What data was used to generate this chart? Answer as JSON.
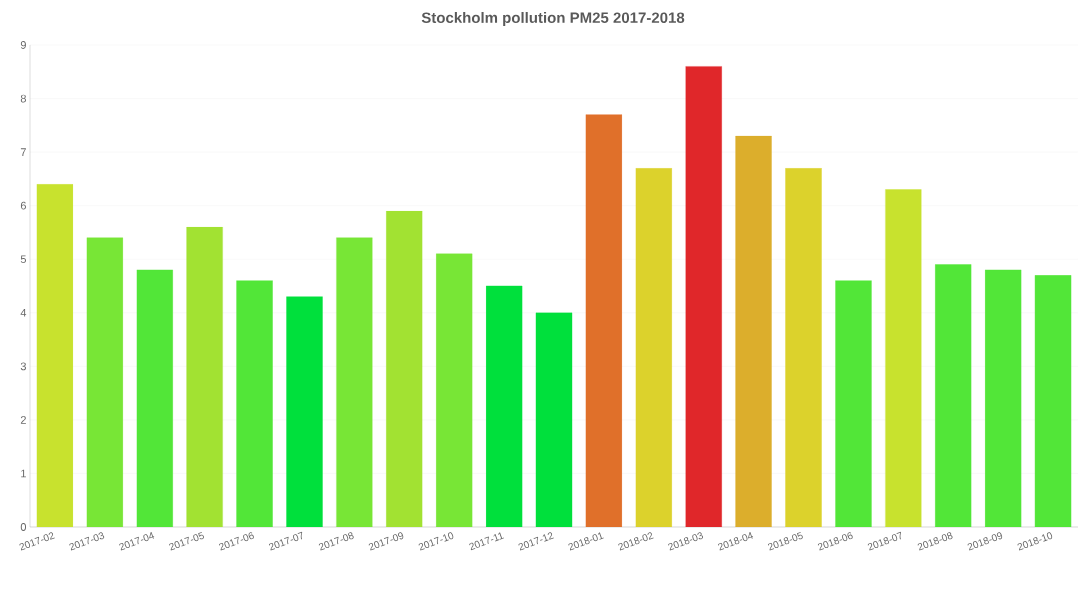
{
  "chart_data": {
    "type": "bar",
    "title": "Stockholm pollution PM25 2017-2018",
    "categories": [
      "2017-02",
      "2017-03",
      "2017-04",
      "2017-05",
      "2017-06",
      "2017-07",
      "2017-08",
      "2017-09",
      "2017-10",
      "2017-11",
      "2017-12",
      "2018-01",
      "2018-02",
      "2018-03",
      "2018-04",
      "2018-05",
      "2018-06",
      "2018-07",
      "2018-08",
      "2018-09",
      "2018-10"
    ],
    "values": [
      6.4,
      5.4,
      4.8,
      5.6,
      4.6,
      4.3,
      5.4,
      5.9,
      5.1,
      4.5,
      4.0,
      7.7,
      6.7,
      8.6,
      7.3,
      6.7,
      4.6,
      6.3,
      4.9,
      4.8,
      4.7
    ],
    "colors": [
      "#c8e22e",
      "#78e636",
      "#52e638",
      "#a2e232",
      "#52e638",
      "#00e03c",
      "#78e636",
      "#a2e232",
      "#78e636",
      "#00e03c",
      "#00e03c",
      "#e0702a",
      "#dcd22c",
      "#e0272a",
      "#dcae2c",
      "#dcd22c",
      "#52e638",
      "#c8e22e",
      "#52e638",
      "#52e638",
      "#52e638"
    ],
    "ylim": [
      0,
      9
    ],
    "yticks": [
      0,
      1,
      2,
      3,
      4,
      5,
      6,
      7,
      8,
      9
    ],
    "grid": "y"
  }
}
